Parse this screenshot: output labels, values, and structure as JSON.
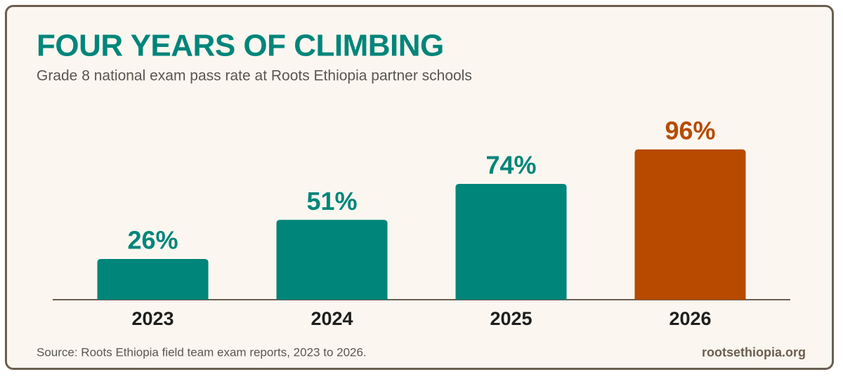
{
  "chart_data": {
    "type": "bar",
    "title": "FOUR YEARS OF CLIMBING",
    "subtitle": "Grade 8 national exam pass rate at Roots Ethiopia partner schools",
    "categories": [
      "2023",
      "2024",
      "2025",
      "2026"
    ],
    "values": [
      26,
      51,
      74,
      96
    ],
    "value_labels": [
      "26%",
      "51%",
      "74%",
      "96%"
    ],
    "colors": [
      "#00857a",
      "#00857a",
      "#00857a",
      "#b84a00"
    ],
    "source": "Source: Roots Ethiopia field team exam reports, 2023 to 2026.",
    "website": "rootsethiopia.org"
  }
}
